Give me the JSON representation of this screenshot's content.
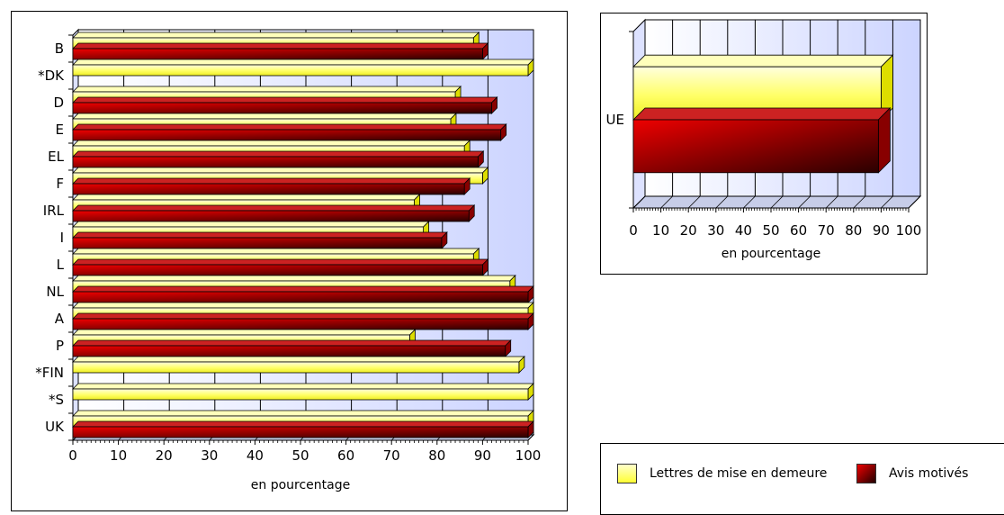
{
  "chart_data": [
    {
      "type": "bar",
      "orientation": "horizontal",
      "categories": [
        "B",
        "*DK",
        "D",
        "E",
        "EL",
        "F",
        "IRL",
        "I",
        "L",
        "NL",
        "A",
        "P",
        "*FIN",
        "*S",
        "UK"
      ],
      "series": [
        {
          "name": "Lettres de mise en demeure",
          "color": "#ffff66",
          "values": [
            88,
            100,
            84,
            83,
            86,
            90,
            75,
            77,
            88,
            96,
            100,
            74,
            98,
            100,
            100
          ]
        },
        {
          "name": "Avis motivés",
          "color": "#aa0000",
          "values": [
            90,
            null,
            92,
            94,
            89,
            86,
            87,
            81,
            90,
            100,
            100,
            95,
            null,
            null,
            100
          ]
        }
      ],
      "xlabel": "en pourcentage",
      "xlim": [
        0,
        100
      ],
      "xticks": [
        "0",
        "10",
        "20",
        "30",
        "40",
        "50",
        "60",
        "70",
        "80",
        "90",
        "100"
      ],
      "grid": true
    },
    {
      "type": "bar",
      "orientation": "horizontal",
      "categories": [
        "UE"
      ],
      "series": [
        {
          "name": "Lettres de mise en demeure",
          "color": "#ffff66",
          "values": [
            90
          ]
        },
        {
          "name": "Avis motivés",
          "color": "#aa0000",
          "values": [
            89
          ]
        }
      ],
      "xlabel": "en pourcentage",
      "xlim": [
        0,
        100
      ],
      "xticks": [
        "0",
        "10",
        "20",
        "30",
        "40",
        "50",
        "60",
        "70",
        "80",
        "90",
        "100"
      ],
      "grid": true
    }
  ],
  "legend": {
    "lettres": "Lettres de mise en demeure",
    "avis": "Avis motivés",
    "lettres_color": "#ffff66",
    "avis_color": "#aa0000"
  }
}
